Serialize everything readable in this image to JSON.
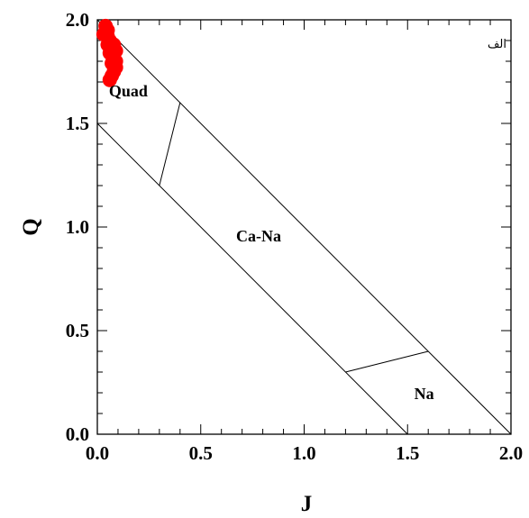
{
  "chart_data": {
    "type": "scatter",
    "title": "",
    "xlabel": "J",
    "ylabel": "Q",
    "xlim": [
      0.0,
      2.0
    ],
    "ylim": [
      0.0,
      2.0
    ],
    "x_ticks": [
      "0.0",
      "0.5",
      "1.0",
      "1.5",
      "2.0"
    ],
    "y_ticks": [
      "0.0",
      "0.5",
      "1.0",
      "1.5",
      "2.0"
    ],
    "x_tick_values": [
      0.0,
      0.5,
      1.0,
      1.5,
      2.0
    ],
    "y_tick_values": [
      0.0,
      0.5,
      1.0,
      1.5,
      2.0
    ],
    "corner_label": "الف",
    "region_labels": [
      {
        "text": "Quad",
        "x": 0.15,
        "y": 1.63
      },
      {
        "text": "Ca-Na",
        "x": 0.78,
        "y": 0.93
      },
      {
        "text": "Na",
        "x": 1.58,
        "y": 0.17
      }
    ],
    "boundary_lines": [
      {
        "from": [
          0.0,
          2.0
        ],
        "to": [
          2.0,
          0.0
        ]
      },
      {
        "from": [
          0.0,
          1.5
        ],
        "to": [
          1.5,
          0.0
        ]
      },
      {
        "from": [
          0.3,
          1.2
        ],
        "to": [
          0.4,
          1.6
        ]
      },
      {
        "from": [
          1.2,
          0.3
        ],
        "to": [
          1.6,
          0.4
        ]
      }
    ],
    "series": [
      {
        "color": "#ff0000",
        "points": [
          {
            "x": 0.04,
            "y": 1.97
          },
          {
            "x": 0.05,
            "y": 1.95
          },
          {
            "x": 0.03,
            "y": 1.93
          },
          {
            "x": 0.05,
            "y": 1.92
          },
          {
            "x": 0.06,
            "y": 1.9
          },
          {
            "x": 0.08,
            "y": 1.88
          },
          {
            "x": 0.05,
            "y": 1.88
          },
          {
            "x": 0.07,
            "y": 1.86
          },
          {
            "x": 0.09,
            "y": 1.85
          },
          {
            "x": 0.06,
            "y": 1.84
          },
          {
            "x": 0.08,
            "y": 1.82
          },
          {
            "x": 0.09,
            "y": 1.8
          },
          {
            "x": 0.07,
            "y": 1.79
          },
          {
            "x": 0.09,
            "y": 1.77
          },
          {
            "x": 0.08,
            "y": 1.75
          },
          {
            "x": 0.07,
            "y": 1.73
          },
          {
            "x": 0.06,
            "y": 1.71
          }
        ]
      }
    ]
  }
}
